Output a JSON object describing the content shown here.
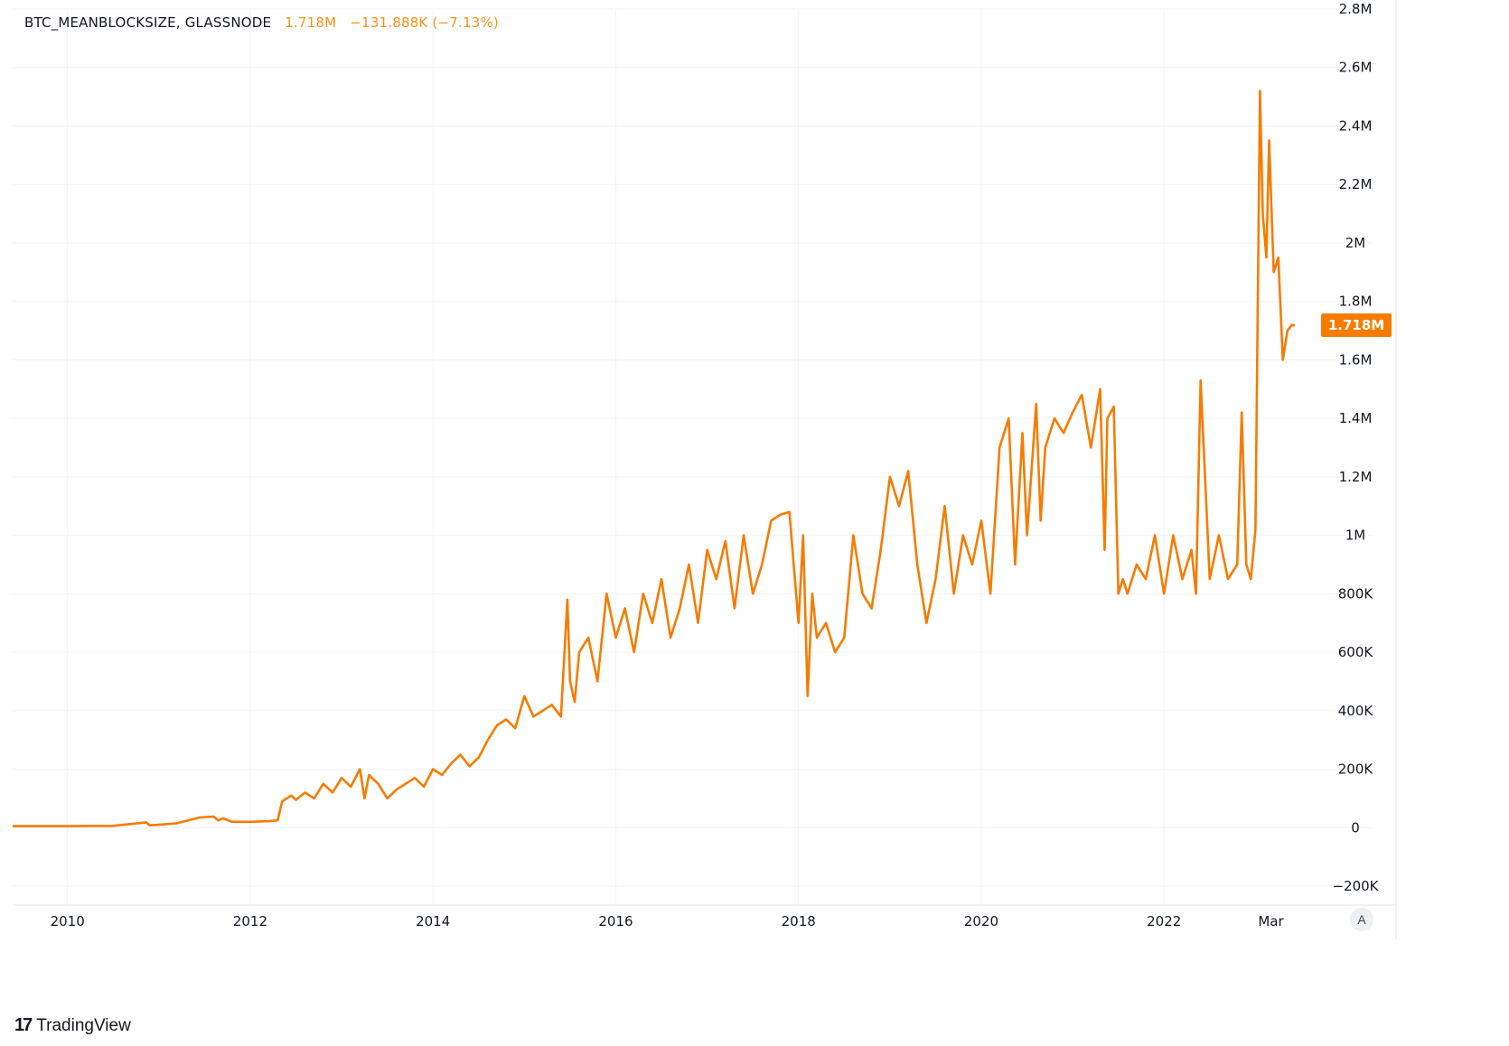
{
  "legend": {
    "symbol": "BTC_MEANBLOCKSIZE, GLASSNODE",
    "value": "1.718M",
    "change": "−131.888K (−7.13%)"
  },
  "price_badge": "1.718M",
  "auto_scale_label": "A",
  "brand": {
    "logo": "17",
    "name": "TradingView"
  },
  "colors": {
    "series": "#f57c00",
    "badge": "#f57c00",
    "grid": "#f0f3fa",
    "axis_border": "#e0e3eb"
  },
  "chart_data": {
    "type": "line",
    "series": [
      {
        "name": "BTC_MEANBLOCKSIZE, GLASSNODE",
        "x": [
          2009.4,
          2010.0,
          2010.5,
          2010.86,
          2010.9,
          2010.95,
          2011.2,
          2011.45,
          2011.6,
          2011.65,
          2011.7,
          2011.8,
          2012.0,
          2012.2,
          2012.3,
          2012.35,
          2012.45,
          2012.5,
          2012.6,
          2012.7,
          2012.8,
          2012.9,
          2013.0,
          2013.1,
          2013.2,
          2013.25,
          2013.3,
          2013.4,
          2013.5,
          2013.6,
          2013.7,
          2013.8,
          2013.9,
          2014.0,
          2014.1,
          2014.2,
          2014.3,
          2014.4,
          2014.5,
          2014.6,
          2014.7,
          2014.8,
          2014.9,
          2015.0,
          2015.1,
          2015.2,
          2015.3,
          2015.4,
          2015.47,
          2015.5,
          2015.55,
          2015.6,
          2015.7,
          2015.8,
          2015.9,
          2016.0,
          2016.1,
          2016.2,
          2016.3,
          2016.4,
          2016.5,
          2016.6,
          2016.7,
          2016.8,
          2016.9,
          2017.0,
          2017.1,
          2017.2,
          2017.3,
          2017.4,
          2017.5,
          2017.6,
          2017.7,
          2017.8,
          2017.9,
          2018.0,
          2018.05,
          2018.1,
          2018.15,
          2018.2,
          2018.3,
          2018.4,
          2018.5,
          2018.6,
          2018.7,
          2018.8,
          2018.9,
          2019.0,
          2019.1,
          2019.2,
          2019.3,
          2019.4,
          2019.5,
          2019.6,
          2019.7,
          2019.8,
          2019.9,
          2020.0,
          2020.1,
          2020.2,
          2020.3,
          2020.37,
          2020.45,
          2020.5,
          2020.6,
          2020.65,
          2020.7,
          2020.8,
          2020.9,
          2021.0,
          2021.1,
          2021.2,
          2021.3,
          2021.35,
          2021.38,
          2021.45,
          2021.5,
          2021.55,
          2021.6,
          2021.7,
          2021.8,
          2021.9,
          2022.0,
          2022.1,
          2022.2,
          2022.3,
          2022.35,
          2022.4,
          2022.5,
          2022.6,
          2022.7,
          2022.8,
          2022.85,
          2022.9,
          2022.95,
          2023.0,
          2023.05,
          2023.08,
          2023.12,
          2023.15,
          2023.2,
          2023.25,
          2023.3,
          2023.35,
          2023.4,
          2023.43
        ],
        "values": [
          5000,
          5000,
          6000,
          18000,
          8000,
          9000,
          15000,
          35000,
          38000,
          25000,
          32000,
          20000,
          20000,
          22000,
          25000,
          90000,
          110000,
          95000,
          120000,
          100000,
          150000,
          120000,
          170000,
          140000,
          200000,
          100000,
          180000,
          150000,
          100000,
          130000,
          150000,
          170000,
          140000,
          200000,
          180000,
          220000,
          250000,
          210000,
          240000,
          300000,
          350000,
          370000,
          340000,
          450000,
          380000,
          400000,
          420000,
          380000,
          780000,
          500000,
          430000,
          600000,
          650000,
          500000,
          800000,
          650000,
          750000,
          600000,
          800000,
          700000,
          850000,
          650000,
          750000,
          900000,
          700000,
          950000,
          850000,
          980000,
          750000,
          1000000,
          800000,
          900000,
          1050000,
          1070000,
          1080000,
          700000,
          1000000,
          450000,
          800000,
          650000,
          700000,
          600000,
          650000,
          1000000,
          800000,
          750000,
          950000,
          1200000,
          1100000,
          1220000,
          900000,
          700000,
          850000,
          1100000,
          800000,
          1000000,
          900000,
          1050000,
          800000,
          1300000,
          1400000,
          900000,
          1350000,
          1000000,
          1450000,
          1050000,
          1300000,
          1400000,
          1350000,
          1420000,
          1480000,
          1300000,
          1500000,
          950000,
          1400000,
          1440000,
          800000,
          850000,
          800000,
          900000,
          850000,
          1000000,
          800000,
          1000000,
          850000,
          950000,
          800000,
          1530000,
          850000,
          1000000,
          850000,
          900000,
          1420000,
          900000,
          850000,
          1020000,
          2520000,
          2100000,
          1950000,
          2350000,
          1900000,
          1950000,
          1600000,
          1700000,
          1720000,
          1718000
        ]
      }
    ],
    "x_tick_labels": [
      "2010",
      "2012",
      "2014",
      "2016",
      "2018",
      "2020",
      "2022",
      "Mar"
    ],
    "x_tick_values": [
      2010,
      2012,
      2014,
      2016,
      2018,
      2020,
      2022,
      2023.17
    ],
    "y_tick_labels": [
      "−200K",
      "0",
      "200K",
      "400K",
      "600K",
      "800K",
      "1M",
      "1.2M",
      "1.4M",
      "1.6M",
      "1.8M",
      "2M",
      "2.2M",
      "2.4M",
      "2.6M",
      "2.8M"
    ],
    "y_tick_values": [
      -200000,
      0,
      200000,
      400000,
      600000,
      800000,
      1000000,
      1200000,
      1400000,
      1600000,
      1800000,
      2000000,
      2200000,
      2400000,
      2600000,
      2800000
    ],
    "xlim": [
      2009.4,
      2023.55
    ],
    "ylim": [
      -200000,
      2800000
    ],
    "grid": true,
    "last_value": 1718000
  }
}
